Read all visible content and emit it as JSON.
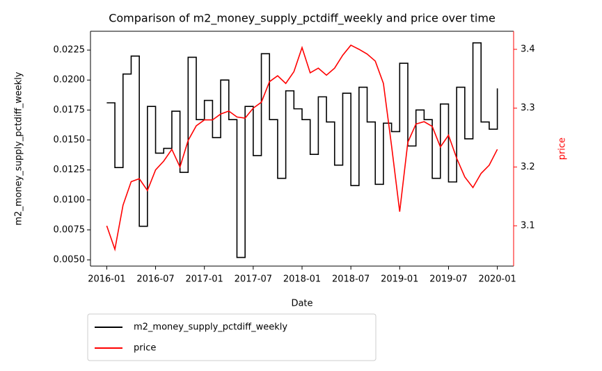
{
  "chart_data": {
    "type": "line",
    "title": "Comparison of m2_money_supply_pctdiff_weekly and price over time",
    "x_label": "Date",
    "y_label": "m2_money_supply_pctdiff_weekly",
    "y2_label": "price",
    "x": [
      "2016-01",
      "2016-02",
      "2016-03",
      "2016-04",
      "2016-05",
      "2016-06",
      "2016-07",
      "2016-08",
      "2016-09",
      "2016-10",
      "2016-11",
      "2016-12",
      "2017-01",
      "2017-02",
      "2017-03",
      "2017-04",
      "2017-05",
      "2017-06",
      "2017-07",
      "2017-08",
      "2017-09",
      "2017-10",
      "2017-11",
      "2017-12",
      "2018-01",
      "2018-02",
      "2018-03",
      "2018-04",
      "2018-05",
      "2018-06",
      "2018-07",
      "2018-08",
      "2018-09",
      "2018-10",
      "2018-11",
      "2018-12",
      "2019-01",
      "2019-02",
      "2019-03",
      "2019-04",
      "2019-05",
      "2019-06",
      "2019-07",
      "2019-08",
      "2019-09",
      "2019-10",
      "2019-11",
      "2019-12",
      "2020-01"
    ],
    "series": [
      {
        "name": "m2_money_supply_pctdiff_weekly",
        "color": "#000000",
        "step": true,
        "values": [
          0.0181,
          0.0127,
          0.0205,
          0.022,
          0.0078,
          0.0178,
          0.0139,
          0.0143,
          0.0174,
          0.0123,
          0.0219,
          0.0167,
          0.0183,
          0.0152,
          0.02,
          0.0167,
          0.0052,
          0.0178,
          0.0137,
          0.0222,
          0.0167,
          0.0118,
          0.0191,
          0.0176,
          0.0167,
          0.0138,
          0.0186,
          0.0165,
          0.0129,
          0.0189,
          0.0112,
          0.0194,
          0.0165,
          0.0113,
          0.0164,
          0.0157,
          0.0214,
          0.0145,
          0.0175,
          0.0167,
          0.0118,
          0.018,
          0.0115,
          0.0194,
          0.0151,
          0.0231,
          0.0165,
          0.0159,
          0.0193
        ]
      },
      {
        "name": "price",
        "color": "#ff0000",
        "axis": "y2",
        "values": [
          3.1,
          3.06,
          3.135,
          3.175,
          3.18,
          3.16,
          3.195,
          3.21,
          3.23,
          3.2,
          3.245,
          3.27,
          3.28,
          3.28,
          3.29,
          3.295,
          3.285,
          3.283,
          3.3,
          3.31,
          3.345,
          3.355,
          3.342,
          3.362,
          3.403,
          3.36,
          3.368,
          3.356,
          3.368,
          3.39,
          3.407,
          3.4,
          3.392,
          3.38,
          3.342,
          3.236,
          3.124,
          3.242,
          3.273,
          3.277,
          3.269,
          3.234,
          3.254,
          3.215,
          3.183,
          3.165,
          3.189,
          3.203,
          3.23
        ]
      }
    ],
    "xlim": [
      "2015-11",
      "2020-03"
    ],
    "xticks": [
      "2016-01",
      "2016-07",
      "2017-01",
      "2017-07",
      "2018-01",
      "2018-07",
      "2019-01",
      "2019-07",
      "2020-01"
    ],
    "ylim": [
      0.00448,
      0.02407
    ],
    "yticks": [
      {
        "value": 0.005,
        "label": "0.0050"
      },
      0.0075,
      {
        "value": 0.01,
        "label": "0.0100"
      },
      0.0125,
      {
        "value": 0.015,
        "label": "0.0150"
      },
      0.0175,
      {
        "value": 0.02,
        "label": "0.0200"
      },
      0.0225
    ],
    "y2lim": [
      3.0315,
      3.4307
    ],
    "y2ticks": [
      3.1,
      3.2,
      3.3,
      3.4
    ],
    "y2_color": "#ff0000",
    "grid": false,
    "legend": "below"
  }
}
